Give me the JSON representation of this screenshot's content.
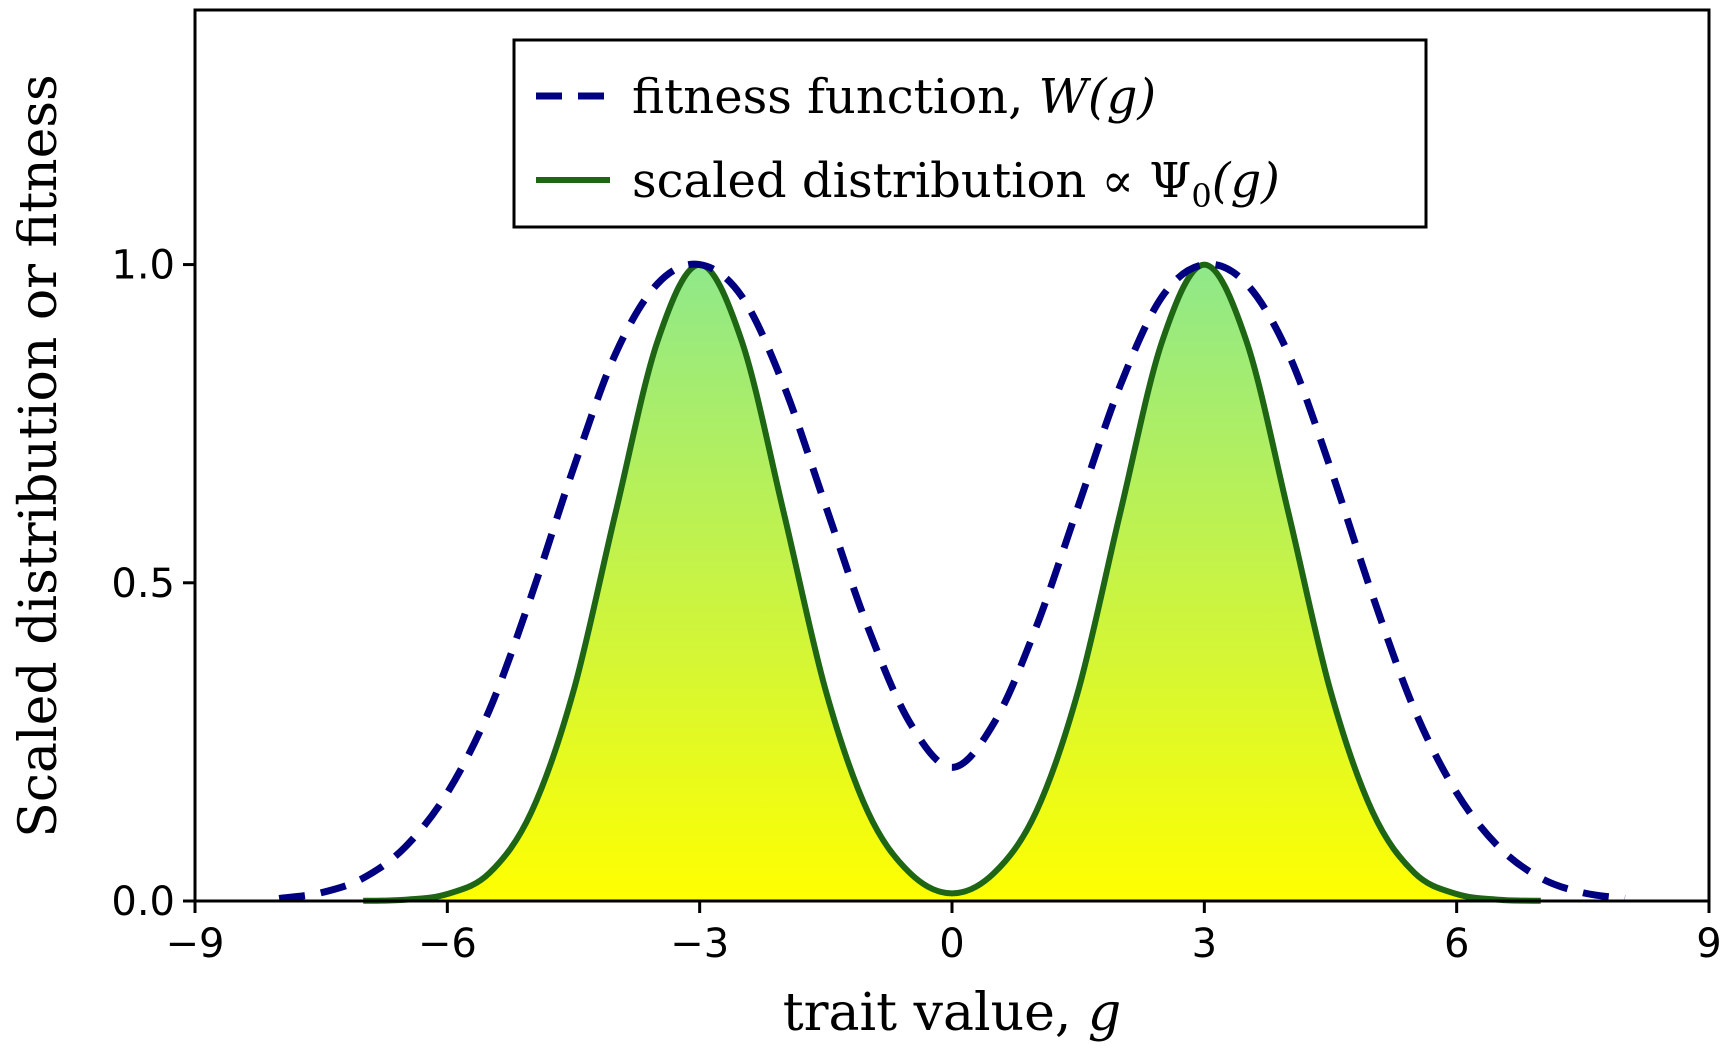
{
  "chart_data": {
    "type": "line",
    "title": "",
    "xlabel": "trait value, g",
    "ylabel": "Scaled distribution or fitness",
    "xlim": [
      -9,
      9
    ],
    "ylim": [
      0,
      1.4
    ],
    "xticks": [
      -9,
      -6,
      -3,
      0,
      3,
      6,
      9
    ],
    "xtick_labels": [
      "−9",
      "−6",
      "−3",
      "0",
      "3",
      "6",
      "9"
    ],
    "yticks": [
      0.0,
      0.5,
      1.0
    ],
    "ytick_labels": [
      "0.0",
      "0.5",
      "1.0"
    ],
    "legend_position": "top-center",
    "series": [
      {
        "name": "fitness function, W(g)",
        "style": "dashed",
        "color": "#000080",
        "x": [
          -8,
          -7.5,
          -7,
          -6.5,
          -6,
          -5.5,
          -5,
          -4.5,
          -4,
          -3.5,
          -3,
          -2.5,
          -2,
          -1.5,
          -1,
          -0.5,
          0,
          0.5,
          1,
          1.5,
          2,
          2.5,
          3,
          3.5,
          4,
          4.5,
          5,
          5.5,
          6,
          6.5,
          7,
          7.5,
          8
        ],
        "values": [
          0.004,
          0.013,
          0.036,
          0.085,
          0.17,
          0.3,
          0.48,
          0.68,
          0.86,
          0.97,
          1.0,
          0.95,
          0.81,
          0.62,
          0.43,
          0.28,
          0.21,
          0.28,
          0.43,
          0.62,
          0.81,
          0.95,
          1.0,
          0.97,
          0.86,
          0.68,
          0.48,
          0.3,
          0.17,
          0.085,
          0.036,
          0.013,
          0.004
        ]
      },
      {
        "name": "scaled distribution ∝ Ψ₀(g)",
        "style": "solid-filled",
        "color": "#1e6614",
        "x": [
          -7,
          -6.5,
          -6,
          -5.5,
          -5,
          -4.5,
          -4,
          -3.5,
          -3,
          -2.5,
          -2,
          -1.5,
          -1,
          -0.5,
          0,
          0.5,
          1,
          1.5,
          2,
          2.5,
          3,
          3.5,
          4,
          4.5,
          5,
          5.5,
          6,
          6.5,
          7
        ],
        "values": [
          0.0003,
          0.002,
          0.011,
          0.044,
          0.14,
          0.33,
          0.61,
          0.88,
          1.0,
          0.88,
          0.61,
          0.33,
          0.14,
          0.044,
          0.012,
          0.044,
          0.14,
          0.33,
          0.61,
          0.88,
          1.0,
          0.88,
          0.61,
          0.33,
          0.14,
          0.044,
          0.011,
          0.002,
          0.0003
        ]
      }
    ],
    "legend": {
      "entry1": {
        "prefix": "fitness function, ",
        "math": "W(g)"
      },
      "entry2": {
        "prefix": "scaled distribution ∝ Ψ",
        "subscript": "0",
        "suffix": "(g)"
      }
    },
    "fill_colors": {
      "top": "#8fe88a",
      "bottom": "#ffff00"
    }
  }
}
